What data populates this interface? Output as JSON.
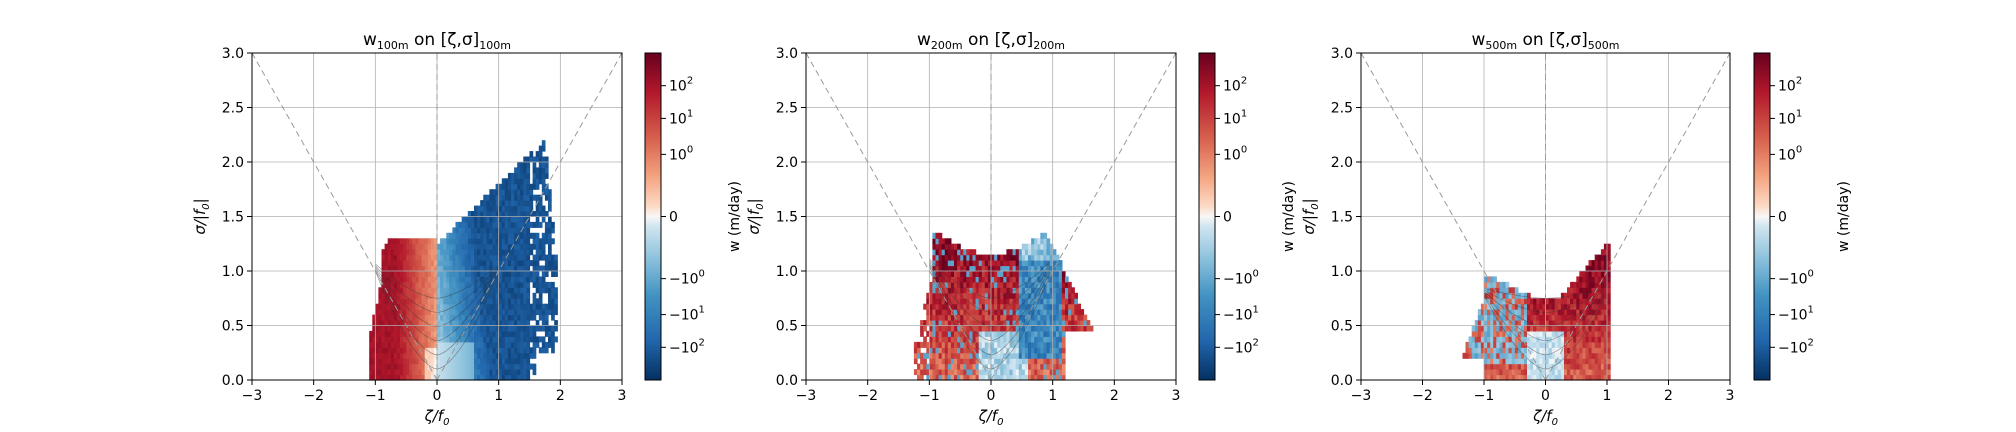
{
  "axes_common": {
    "xlabel_main": "ζ/f",
    "xlabel_sub": "0",
    "ylabel_main": "σ/|f",
    "ylabel_sub": "0",
    "ylabel_end": "|",
    "xticks": [
      "−3",
      "−2",
      "−1",
      "0",
      "1",
      "2",
      "3"
    ],
    "yticks": [
      "0.0",
      "0.5",
      "1.0",
      "1.5",
      "2.0",
      "2.5",
      "3.0"
    ],
    "colorbar_label": "w (m/day)",
    "colorbar_ticks": [
      {
        "base": "10",
        "exp": "2"
      },
      {
        "base": "10",
        "exp": "1"
      },
      {
        "base": "10",
        "exp": "0"
      },
      {
        "base": "0",
        "exp": ""
      },
      {
        "base": "−10",
        "exp": "0"
      },
      {
        "base": "−10",
        "exp": "1"
      },
      {
        "base": "−10",
        "exp": "2"
      }
    ]
  },
  "panels": [
    {
      "title_w": "w",
      "title_w_sub": "100m",
      "title_mid": " on [ζ,σ]",
      "title_end_sub": "100m"
    },
    {
      "title_w": "w",
      "title_w_sub": "200m",
      "title_mid": " on [ζ,σ]",
      "title_end_sub": "200m"
    },
    {
      "title_w": "w",
      "title_w_sub": "500m",
      "title_mid": " on [ζ,σ]",
      "title_end_sub": "500m"
    }
  ],
  "chart_data": [
    {
      "type": "heatmap",
      "depth": "100m",
      "xlim": [
        -3,
        3
      ],
      "ylim": [
        0,
        3
      ],
      "grid": true,
      "colormap": "RdBu_r symlog",
      "clim": [
        -500,
        500
      ],
      "reference_lines": [
        "σ = |ζ| (dashed)",
        "ζ = 0 (dashed)"
      ],
      "positive_region": {
        "zeta": [
          -1.1,
          0.0
        ],
        "sigma": [
          0.0,
          1.3
        ]
      },
      "negative_region": {
        "zeta": [
          0.0,
          1.9
        ],
        "sigma": [
          0.0,
          2.2
        ]
      }
    },
    {
      "type": "heatmap",
      "depth": "200m",
      "xlim": [
        -3,
        3
      ],
      "ylim": [
        0,
        3
      ],
      "grid": true,
      "colormap": "RdBu_r symlog",
      "clim": [
        -500,
        500
      ],
      "reference_lines": [
        "σ = |ζ| (dashed)",
        "ζ = 0 (dashed)"
      ],
      "positive_region": {
        "zeta": [
          -1.2,
          0.6
        ],
        "sigma": [
          0.0,
          1.3
        ]
      },
      "negative_region": {
        "zeta": [
          0.3,
          1.7
        ],
        "sigma": [
          0.0,
          1.3
        ]
      }
    },
    {
      "type": "heatmap",
      "depth": "500m",
      "xlim": [
        -3,
        3
      ],
      "ylim": [
        0,
        3
      ],
      "grid": true,
      "colormap": "RdBu_r symlog",
      "clim": [
        -500,
        500
      ],
      "reference_lines": [
        "σ = |ζ| (dashed)",
        "ζ = 0 (dashed)"
      ],
      "positive_region": {
        "zeta": [
          -0.5,
          1.0
        ],
        "sigma": [
          0.0,
          1.25
        ]
      },
      "negative_region": {
        "zeta": [
          -1.3,
          0.2
        ],
        "sigma": [
          0.0,
          0.9
        ]
      }
    }
  ]
}
